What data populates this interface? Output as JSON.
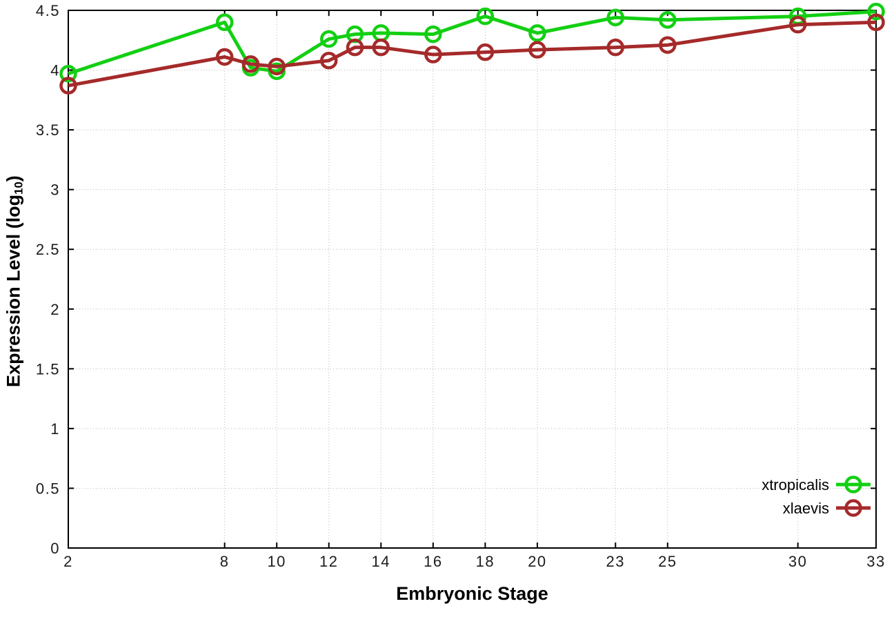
{
  "figure": {
    "background_color": "#ffffff",
    "xlabel": "Embryonic Stage",
    "ylabel": "Expression Level (log10)",
    "ylabel_main": "Expression Level (log",
    "ylabel_sub": "10",
    "ylabel_close": ")"
  },
  "chart_data": {
    "type": "line",
    "title": "",
    "xlabel": "Embryonic Stage",
    "ylabel": "Expression Level (log10)",
    "x": [
      2,
      8,
      9,
      10,
      12,
      13,
      14,
      16,
      18,
      20,
      23,
      25,
      30,
      33
    ],
    "xticks": [
      2,
      8,
      10,
      12,
      14,
      16,
      18,
      20,
      23,
      25,
      30,
      33
    ],
    "yticks": [
      0,
      0.5,
      1,
      1.5,
      2,
      2.5,
      3,
      3.5,
      4,
      4.5
    ],
    "xlim": [
      2,
      33
    ],
    "ylim": [
      0,
      4.5
    ],
    "grid": true,
    "grid_color": "#b8b8b8",
    "border_color": "#000000",
    "legend_position": "bottom-right",
    "marker": "open-circle",
    "series": [
      {
        "name": "xtropicalis",
        "color": "#13cf13",
        "values": [
          3.97,
          4.4,
          4.02,
          3.99,
          4.26,
          4.3,
          4.31,
          4.3,
          4.45,
          4.31,
          4.44,
          4.42,
          4.45,
          4.49
        ]
      },
      {
        "name": "xlaevis",
        "color": "#a52a2a",
        "values": [
          3.87,
          4.11,
          4.05,
          4.03,
          4.08,
          4.19,
          4.19,
          4.13,
          4.15,
          4.17,
          4.19,
          4.21,
          4.38,
          4.4
        ]
      }
    ]
  }
}
